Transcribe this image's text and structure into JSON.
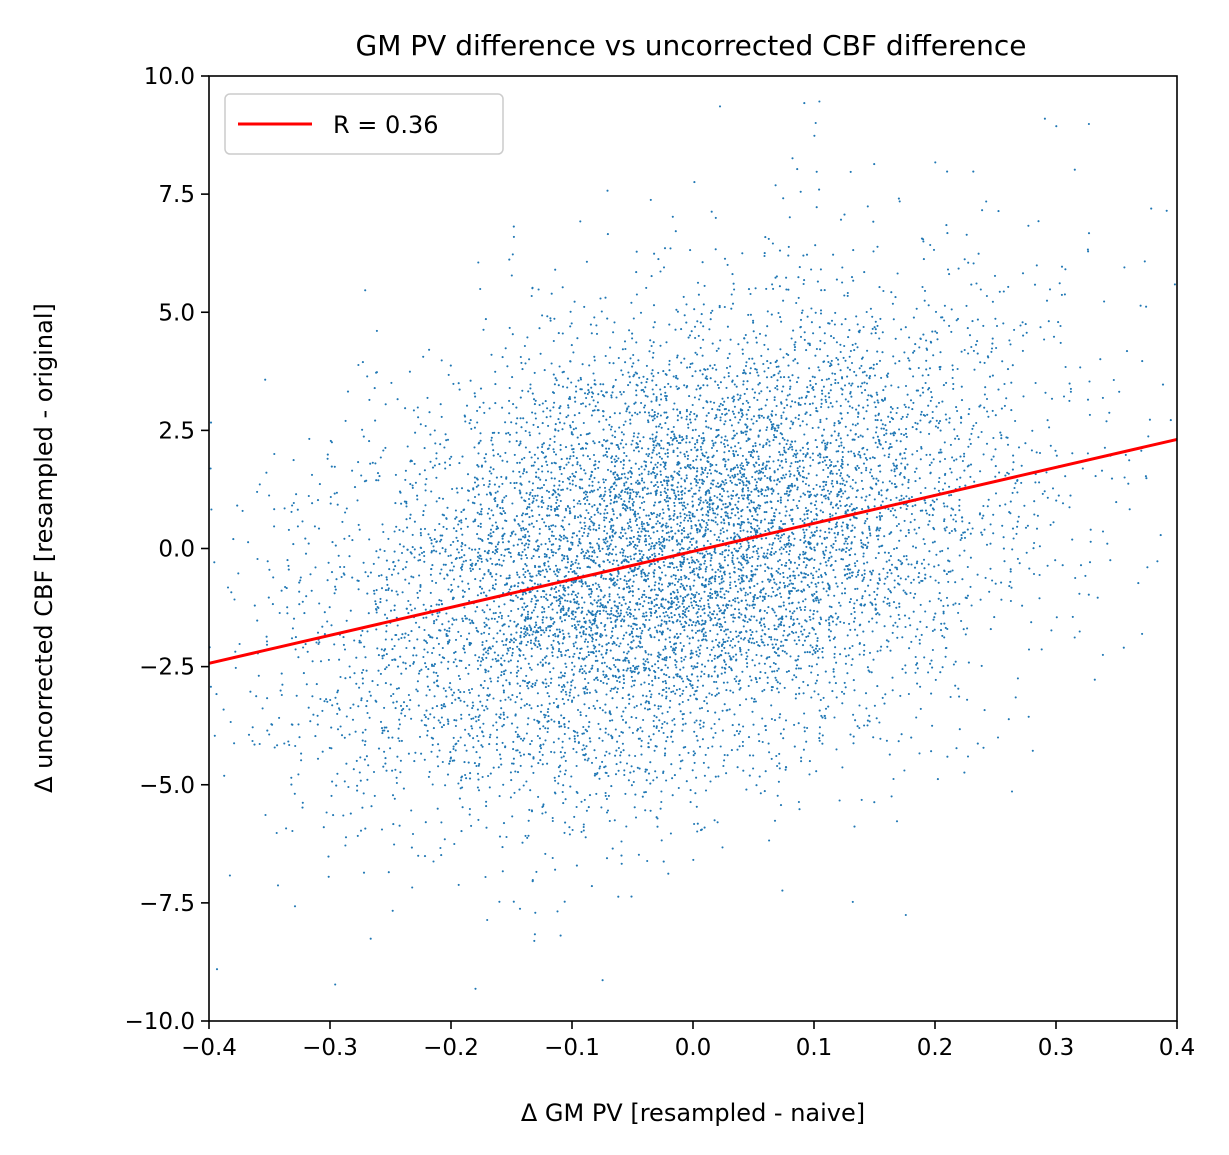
{
  "chart_data": {
    "type": "scatter",
    "title": "GM PV difference vs uncorrected CBF difference",
    "xlabel": "Δ GM PV [resampled - naive]",
    "ylabel": "Δ uncorrected CBF [resampled - original]",
    "xlim": [
      -0.4,
      0.4
    ],
    "ylim": [
      -10.0,
      10.0
    ],
    "xticks": [
      "−0.4",
      "−0.3",
      "−0.2",
      "−0.1",
      "0.0",
      "0.1",
      "0.2",
      "0.3",
      "0.4"
    ],
    "yticks": [
      "−10.0",
      "−7.5",
      "−5.0",
      "−2.5",
      "0.0",
      "2.5",
      "5.0",
      "7.5",
      "10.0"
    ],
    "grid": false,
    "legend_position": "top-left",
    "series": [
      {
        "name": "R = 0.36",
        "type": "line",
        "color": "#ff0000",
        "x": [
          -0.4,
          0.4
        ],
        "y": [
          -2.43,
          2.31
        ]
      }
    ],
    "scatter": {
      "color": "#1f77b4",
      "approx_point_count": 9000,
      "distribution": {
        "x_mean": -0.02,
        "x_sd": 0.14,
        "y_mean": -0.1,
        "y_sd": 2.6,
        "correlation": 0.36
      }
    }
  }
}
